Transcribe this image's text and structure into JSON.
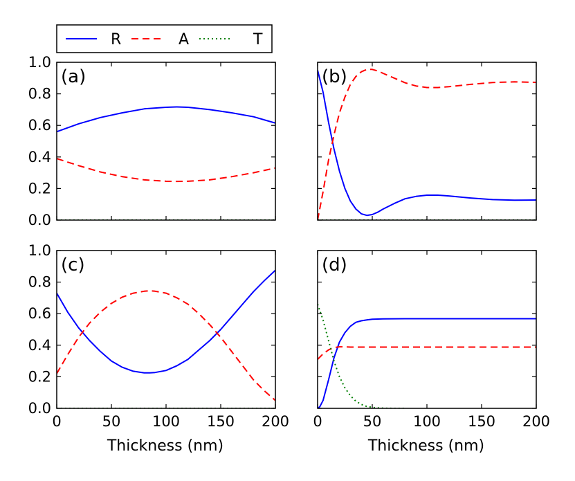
{
  "chart_data": {
    "type": "line",
    "legend": {
      "placement": "top-left, above panels",
      "entries": [
        {
          "name": "R",
          "style": "solid",
          "color": "#0000ff"
        },
        {
          "name": "A",
          "style": "dashed",
          "color": "#ff0000"
        },
        {
          "name": "T",
          "style": "dotted",
          "color": "#007f00"
        }
      ]
    },
    "xlabel": "Thickness (nm)",
    "xlim": [
      0,
      200
    ],
    "ylim": [
      0,
      1
    ],
    "xticks": [
      "0",
      "50",
      "100",
      "150",
      "200"
    ],
    "yticks": [
      "0.0",
      "0.2",
      "0.4",
      "0.6",
      "0.8",
      "1.0"
    ],
    "panels": [
      {
        "label": "(a)",
        "series": [
          {
            "name": "R",
            "x": [
              0,
              20,
              40,
              60,
              80,
              100,
              110,
              120,
              140,
              160,
              180,
              200
            ],
            "y": [
              0.56,
              0.61,
              0.65,
              0.68,
              0.705,
              0.715,
              0.717,
              0.715,
              0.7,
              0.68,
              0.655,
              0.615
            ]
          },
          {
            "name": "A",
            "x": [
              0,
              20,
              40,
              60,
              80,
              100,
              110,
              120,
              140,
              160,
              180,
              200
            ],
            "y": [
              0.39,
              0.345,
              0.305,
              0.275,
              0.255,
              0.246,
              0.245,
              0.246,
              0.255,
              0.275,
              0.3,
              0.33
            ]
          },
          {
            "name": "T",
            "x": [
              0,
              200
            ],
            "y": [
              0.0,
              0.0
            ]
          }
        ]
      },
      {
        "label": "(b)",
        "series": [
          {
            "name": "R",
            "x": [
              0,
              5,
              10,
              15,
              20,
              25,
              30,
              35,
              40,
              45,
              50,
              55,
              60,
              70,
              80,
              90,
              100,
              110,
              120,
              140,
              160,
              180,
              200
            ],
            "y": [
              0.95,
              0.81,
              0.62,
              0.45,
              0.31,
              0.2,
              0.12,
              0.07,
              0.04,
              0.03,
              0.035,
              0.05,
              0.07,
              0.105,
              0.135,
              0.15,
              0.158,
              0.158,
              0.153,
              0.14,
              0.13,
              0.126,
              0.127
            ]
          },
          {
            "name": "A",
            "x": [
              0,
              5,
              10,
              15,
              20,
              25,
              30,
              35,
              40,
              45,
              50,
              55,
              60,
              70,
              80,
              90,
              100,
              110,
              120,
              140,
              160,
              180,
              200
            ],
            "y": [
              0.0,
              0.18,
              0.38,
              0.54,
              0.68,
              0.78,
              0.86,
              0.91,
              0.94,
              0.955,
              0.955,
              0.945,
              0.93,
              0.9,
              0.87,
              0.85,
              0.84,
              0.84,
              0.845,
              0.86,
              0.872,
              0.876,
              0.873
            ]
          },
          {
            "name": "T",
            "x": [
              0,
              200
            ],
            "y": [
              0.0,
              0.0
            ]
          }
        ]
      },
      {
        "label": "(c)",
        "series": [
          {
            "name": "R",
            "x": [
              0,
              10,
              20,
              30,
              40,
              50,
              60,
              70,
              80,
              85,
              90,
              100,
              110,
              120,
              130,
              140,
              150,
              160,
              170,
              180,
              190,
              200
            ],
            "y": [
              0.73,
              0.61,
              0.51,
              0.43,
              0.36,
              0.3,
              0.26,
              0.235,
              0.225,
              0.225,
              0.227,
              0.24,
              0.27,
              0.31,
              0.37,
              0.43,
              0.5,
              0.58,
              0.66,
              0.74,
              0.81,
              0.875
            ]
          },
          {
            "name": "A",
            "x": [
              0,
              10,
              20,
              30,
              40,
              50,
              60,
              70,
              80,
              85,
              90,
              100,
              110,
              120,
              130,
              140,
              150,
              160,
              170,
              180,
              190,
              200
            ],
            "y": [
              0.22,
              0.34,
              0.45,
              0.54,
              0.61,
              0.665,
              0.705,
              0.73,
              0.742,
              0.745,
              0.742,
              0.73,
              0.7,
              0.66,
              0.6,
              0.53,
              0.45,
              0.36,
              0.27,
              0.18,
              0.11,
              0.05
            ]
          },
          {
            "name": "T",
            "x": [
              0,
              200
            ],
            "y": [
              0.0,
              0.0
            ]
          }
        ]
      },
      {
        "label": "(d)",
        "series": [
          {
            "name": "R",
            "x": [
              0,
              2,
              5,
              10,
              15,
              20,
              25,
              30,
              35,
              40,
              45,
              50,
              60,
              80,
              100,
              150,
              200
            ],
            "y": [
              0.0,
              0.01,
              0.05,
              0.18,
              0.32,
              0.42,
              0.48,
              0.52,
              0.545,
              0.555,
              0.56,
              0.565,
              0.567,
              0.568,
              0.568,
              0.568,
              0.568
            ]
          },
          {
            "name": "A",
            "x": [
              0,
              5,
              10,
              15,
              20,
              25,
              30,
              40,
              60,
              100,
              150,
              200
            ],
            "y": [
              0.31,
              0.345,
              0.37,
              0.385,
              0.39,
              0.39,
              0.388,
              0.388,
              0.388,
              0.388,
              0.388,
              0.388
            ]
          },
          {
            "name": "T",
            "x": [
              0,
              5,
              10,
              15,
              20,
              25,
              30,
              35,
              40,
              45,
              50,
              55,
              60,
              70,
              80
            ],
            "y": [
              0.66,
              0.56,
              0.43,
              0.3,
              0.2,
              0.13,
              0.08,
              0.045,
              0.025,
              0.012,
              0.006,
              0.003,
              0.001,
              0.0,
              0.0
            ]
          }
        ]
      }
    ]
  }
}
